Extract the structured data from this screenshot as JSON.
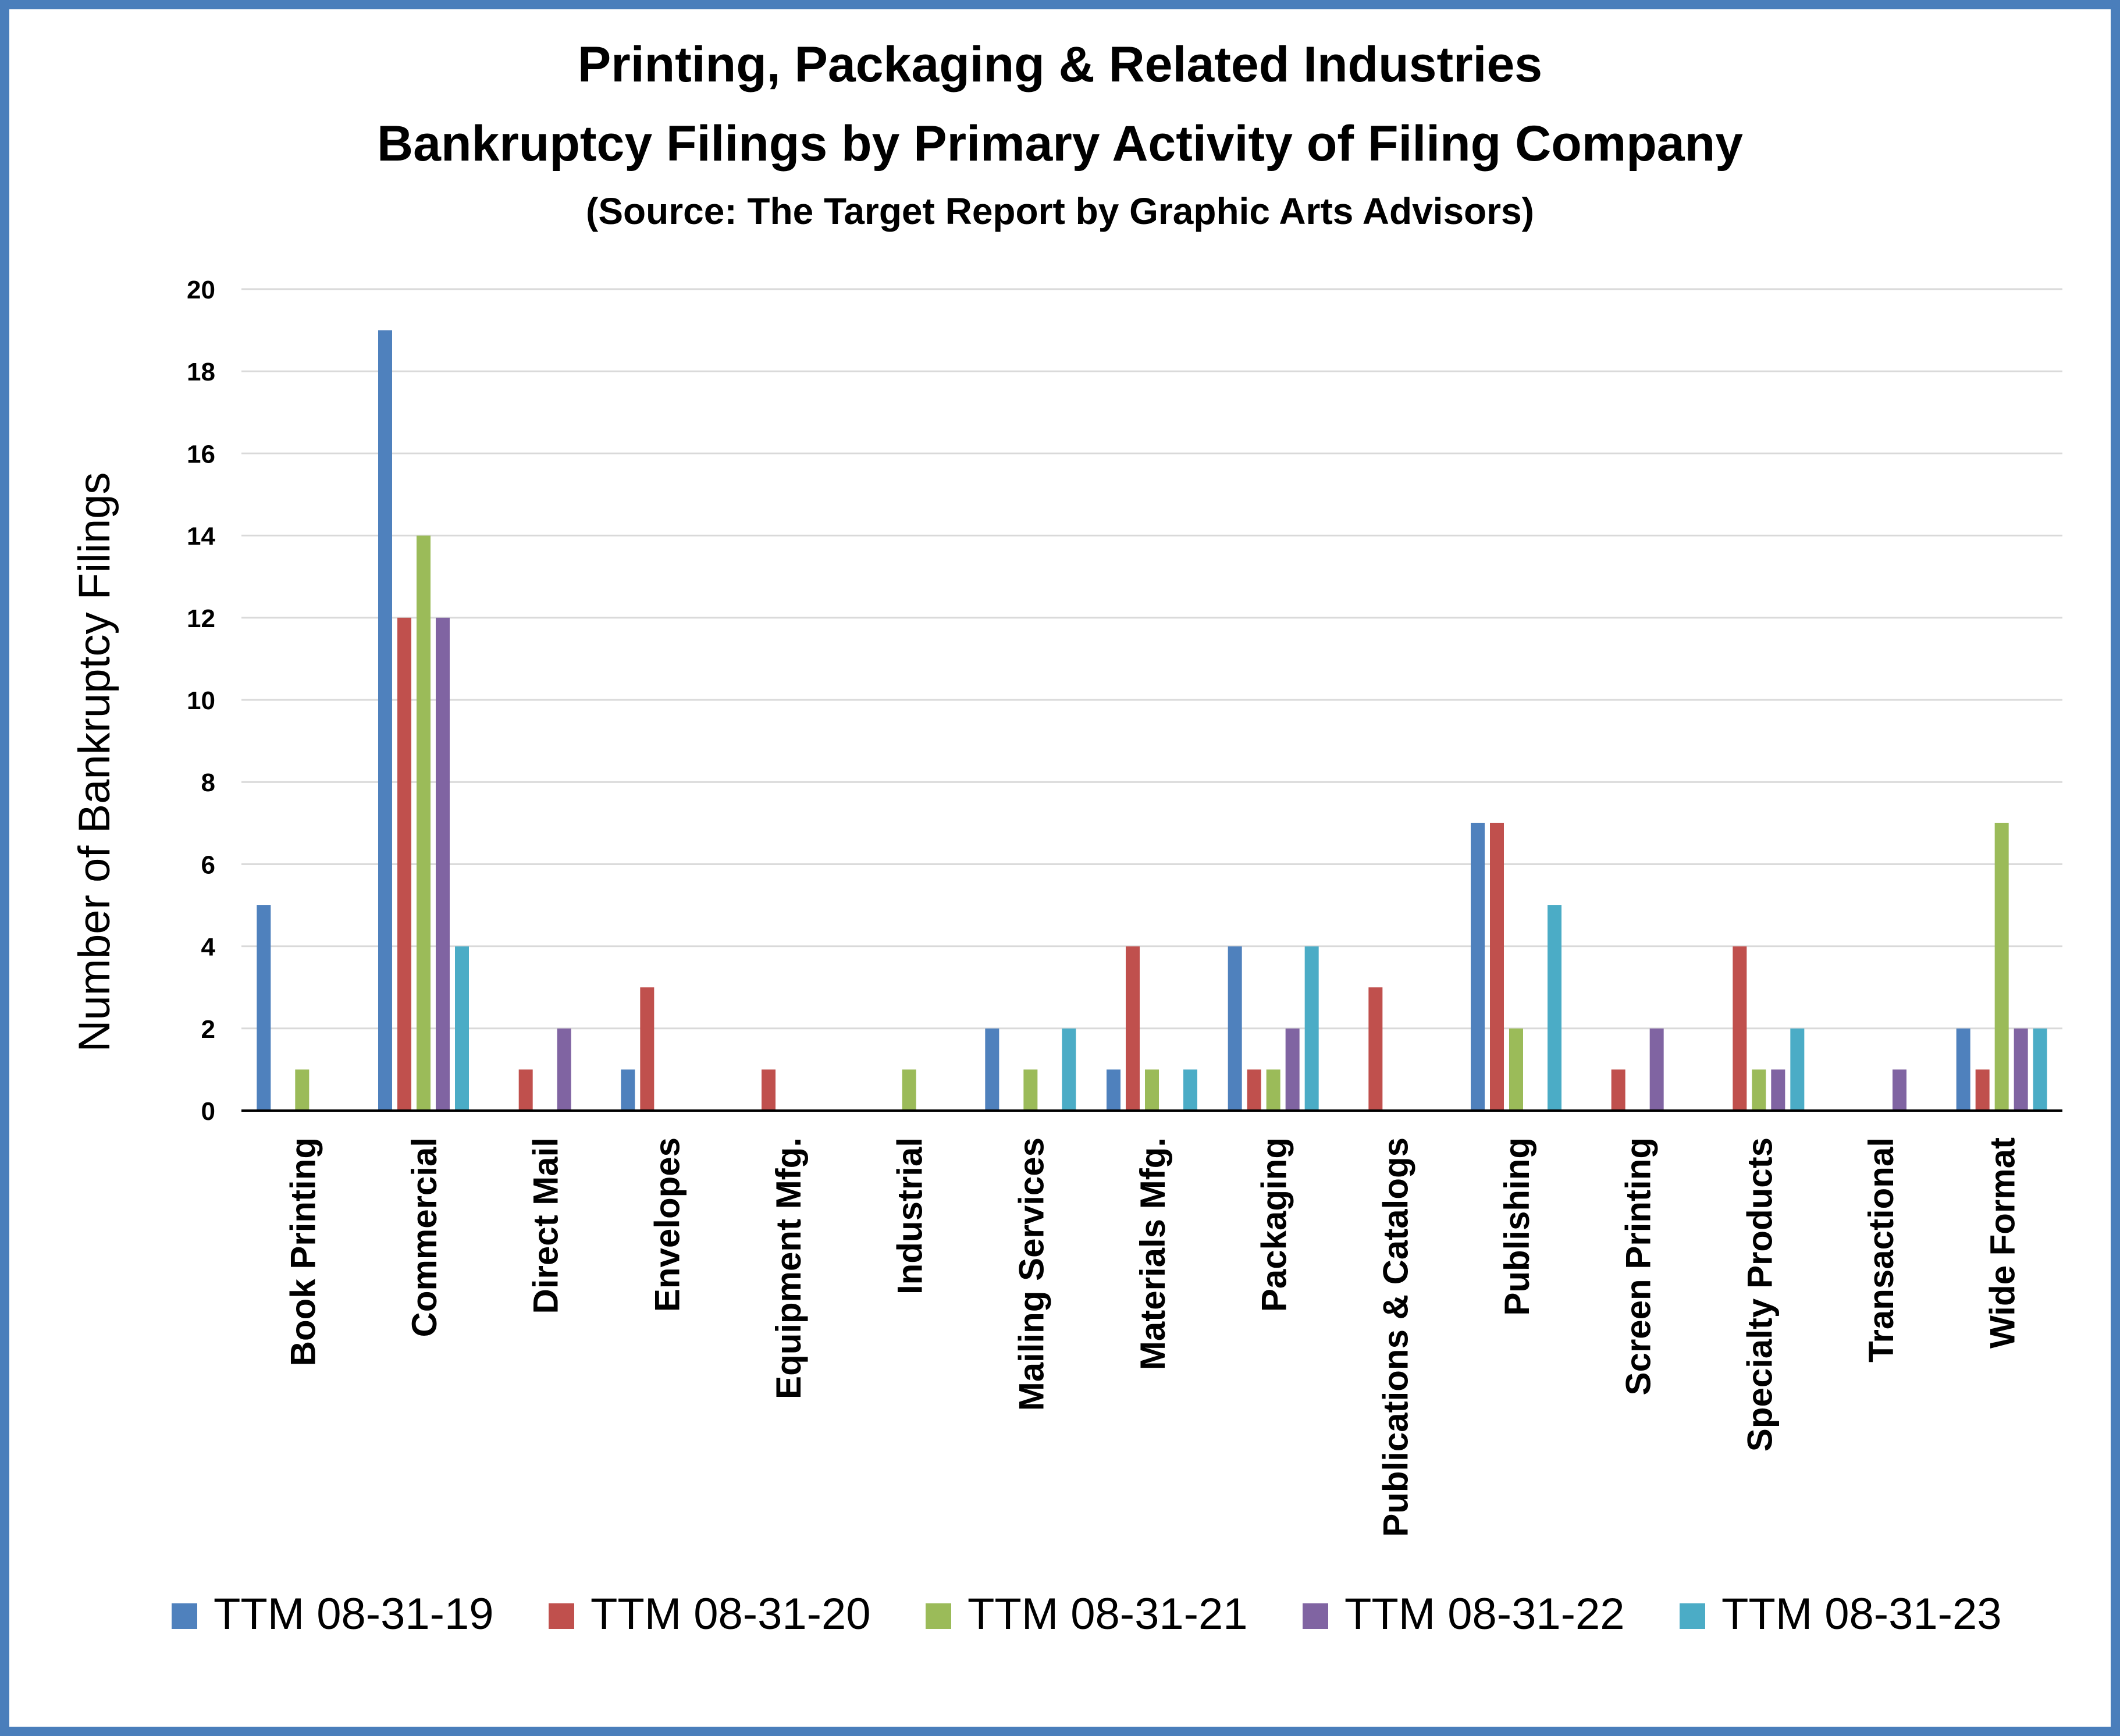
{
  "chart_data": {
    "type": "bar",
    "title": "Printing, Packaging & Related Industries",
    "subtitle": "Bankruptcy Filings by Primary Activity of Filing Company",
    "source": "(Source: The Target Report by Graphic Arts Advisors)",
    "ylabel": "Number of Bankruptcy Filings",
    "xlabel": "",
    "ylim": [
      0,
      20
    ],
    "yticks": [
      "0",
      "2",
      "4",
      "6",
      "8",
      "10",
      "12",
      "14",
      "16",
      "18",
      "20"
    ],
    "grid": true,
    "legend_position": "bottom",
    "categories": [
      "Book Printing",
      "Commercial",
      "Direct Mail",
      "Envelopes",
      "Equipment Mfg.",
      "Industrial",
      "Mailing Services",
      "Materials Mfg.",
      "Packaging",
      "Publications & Catalogs",
      "Publishing",
      "Screen Printing",
      "Specialty Products",
      "Transactional",
      "Wide Format"
    ],
    "series": [
      {
        "name": "TTM 08-31-19",
        "color": "#4f81bd",
        "values": [
          5,
          19,
          0,
          1,
          0,
          0,
          2,
          1,
          4,
          0,
          7,
          0,
          0,
          0,
          2
        ]
      },
      {
        "name": "TTM 08-31-20",
        "color": "#c0504d",
        "values": [
          0,
          12,
          1,
          3,
          1,
          0,
          0,
          4,
          1,
          3,
          7,
          1,
          4,
          0,
          1
        ]
      },
      {
        "name": "TTM 08-31-21",
        "color": "#9bbb59",
        "values": [
          1,
          14,
          0,
          0,
          0,
          1,
          1,
          1,
          1,
          0,
          2,
          0,
          1,
          0,
          7
        ]
      },
      {
        "name": "TTM 08-31-22",
        "color": "#8064a2",
        "values": [
          0,
          12,
          2,
          0,
          0,
          0,
          0,
          0,
          2,
          0,
          0,
          2,
          1,
          1,
          2
        ]
      },
      {
        "name": "TTM 08-31-23",
        "color": "#4bacc6",
        "values": [
          0,
          4,
          0,
          0,
          0,
          0,
          2,
          1,
          4,
          0,
          5,
          0,
          2,
          0,
          2
        ]
      }
    ]
  }
}
